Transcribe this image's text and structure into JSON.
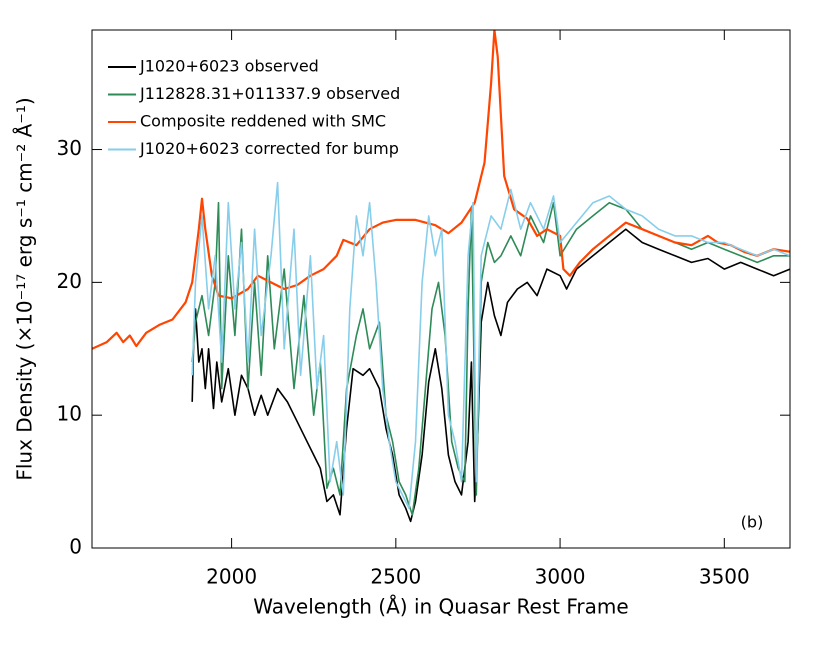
{
  "chart_data": {
    "type": "line",
    "xlabel": "Wavelength (Å) in Quasar Rest Frame",
    "ylabel": "Flux Density (×10⁻¹⁷ erg s⁻¹ cm⁻² Å⁻¹)",
    "annotation": "(b)",
    "xlim": [
      1575,
      3700
    ],
    "xticks": [
      2000,
      2500,
      3000,
      3500
    ],
    "ylim": [
      0,
      39
    ],
    "yticks": [
      0,
      10,
      20,
      30
    ],
    "legend": "upper left",
    "series": [
      {
        "name": "J1020+6023 observed",
        "color": "#000000",
        "x": [
          1880,
          1885,
          1890,
          1900,
          1910,
          1920,
          1930,
          1945,
          1955,
          1970,
          1990,
          2010,
          2030,
          2050,
          2070,
          2090,
          2110,
          2140,
          2170,
          2200,
          2230,
          2250,
          2270,
          2290,
          2310,
          2330,
          2350,
          2370,
          2400,
          2420,
          2450,
          2470,
          2490,
          2510,
          2530,
          2545,
          2560,
          2580,
          2600,
          2620,
          2640,
          2660,
          2680,
          2700,
          2720,
          2730,
          2740,
          2750,
          2760,
          2780,
          2800,
          2820,
          2840,
          2870,
          2900,
          2930,
          2960,
          3000,
          3020,
          3050,
          3100,
          3150,
          3200,
          3250,
          3300,
          3350,
          3400,
          3450,
          3500,
          3550,
          3600,
          3650,
          3700
        ],
        "values": [
          11,
          16,
          18,
          14,
          15,
          12,
          15,
          10.5,
          14,
          11,
          13.5,
          10,
          13,
          12,
          10,
          11.5,
          10,
          12,
          11,
          9.5,
          8,
          7,
          6,
          3.5,
          4,
          2.5,
          9,
          13.5,
          13,
          13.5,
          12,
          9,
          7,
          4,
          3,
          2,
          3.5,
          7,
          12.5,
          15,
          12,
          7,
          5,
          4,
          8,
          14,
          3.5,
          9,
          17,
          20,
          17.5,
          16,
          18.5,
          19.5,
          20,
          19,
          21,
          20.5,
          19.5,
          21,
          22,
          23,
          24,
          23,
          22.5,
          22,
          21.5,
          21.8,
          21,
          21.5,
          21,
          20.5,
          21
        ]
      },
      {
        "name": "J112828.31+011337.9 observed",
        "color": "#2e8b57",
        "x": [
          1880,
          1890,
          1910,
          1930,
          1950,
          1960,
          1970,
          1990,
          2010,
          2030,
          2050,
          2070,
          2090,
          2110,
          2130,
          2160,
          2190,
          2220,
          2250,
          2270,
          2290,
          2310,
          2330,
          2350,
          2380,
          2400,
          2420,
          2450,
          2470,
          2490,
          2510,
          2530,
          2550,
          2570,
          2590,
          2610,
          2630,
          2650,
          2670,
          2690,
          2710,
          2720,
          2730,
          2745,
          2760,
          2780,
          2800,
          2820,
          2850,
          2880,
          2910,
          2950,
          2980,
          3000,
          3050,
          3100,
          3150,
          3200,
          3250,
          3300,
          3350,
          3400,
          3450,
          3500,
          3550,
          3600,
          3650,
          3700
        ],
        "values": [
          14,
          17,
          19,
          16,
          20,
          26,
          12,
          22,
          16,
          24,
          12,
          20,
          13,
          22,
          15,
          21,
          12,
          19,
          10,
          14,
          4.5,
          6,
          4,
          12,
          16,
          18,
          15,
          17,
          10,
          8,
          5,
          4,
          2.5,
          6,
          12,
          18,
          20,
          16,
          8,
          6,
          5,
          18,
          25.5,
          4,
          20,
          23,
          21.5,
          22,
          23.5,
          22,
          25,
          23,
          26,
          22,
          24,
          25,
          26,
          25.5,
          24,
          23.5,
          23,
          22.5,
          23,
          22.5,
          22,
          21.5,
          22,
          22
        ]
      },
      {
        "name": "Composite reddened with SMC",
        "color": "#ff4500",
        "x": [
          1575,
          1620,
          1650,
          1670,
          1690,
          1710,
          1740,
          1780,
          1820,
          1860,
          1880,
          1900,
          1910,
          1920,
          1940,
          1960,
          2000,
          2050,
          2080,
          2120,
          2160,
          2200,
          2240,
          2280,
          2320,
          2340,
          2380,
          2420,
          2460,
          2500,
          2560,
          2620,
          2660,
          2700,
          2740,
          2770,
          2790,
          2800,
          2810,
          2830,
          2860,
          2900,
          2930,
          2960,
          3000,
          3010,
          3030,
          3060,
          3100,
          3150,
          3200,
          3250,
          3300,
          3350,
          3400,
          3450,
          3480,
          3520,
          3560,
          3600,
          3650,
          3700
        ],
        "values": [
          15,
          15.5,
          16.2,
          15.5,
          16,
          15.2,
          16.2,
          16.8,
          17.2,
          18.5,
          20,
          24,
          26.3,
          24,
          20.5,
          19,
          18.8,
          19.5,
          20.5,
          20,
          19.5,
          19.8,
          20.5,
          21,
          22,
          23.2,
          22.8,
          24,
          24.5,
          24.7,
          24.7,
          24.3,
          23.7,
          24.5,
          26,
          29,
          35,
          39,
          37,
          28,
          25.5,
          24.8,
          23.5,
          24,
          23.5,
          21,
          20.5,
          21.5,
          22.5,
          23.5,
          24.5,
          24,
          23.5,
          23,
          22.8,
          23.5,
          23,
          22.8,
          22.3,
          22,
          22.5,
          22.3
        ]
      },
      {
        "name": "J1020+6023 corrected for bump",
        "color": "#87ceeb",
        "x": [
          1880,
          1890,
          1910,
          1930,
          1950,
          1970,
          1990,
          2010,
          2030,
          2050,
          2070,
          2090,
          2120,
          2140,
          2160,
          2190,
          2210,
          2240,
          2260,
          2280,
          2300,
          2320,
          2340,
          2360,
          2380,
          2400,
          2420,
          2440,
          2460,
          2480,
          2500,
          2520,
          2540,
          2560,
          2580,
          2600,
          2620,
          2640,
          2660,
          2680,
          2700,
          2720,
          2735,
          2745,
          2760,
          2790,
          2820,
          2850,
          2880,
          2910,
          2950,
          2980,
          3000,
          3050,
          3100,
          3150,
          3200,
          3250,
          3300,
          3350,
          3400,
          3450,
          3500,
          3550,
          3600,
          3650,
          3700
        ],
        "values": [
          13,
          20,
          25,
          18,
          22,
          14,
          26,
          18,
          23,
          14,
          24,
          16,
          22,
          27.5,
          15,
          24,
          13,
          22,
          12,
          16,
          5,
          8,
          4,
          18,
          25,
          22,
          26,
          20,
          12,
          8,
          5,
          4,
          3,
          8,
          20,
          25,
          22,
          24,
          10,
          8,
          5,
          22,
          26,
          5,
          22,
          25,
          24,
          27,
          24,
          26,
          24,
          26.5,
          23,
          24.5,
          26,
          26.5,
          25.5,
          25,
          24,
          23.5,
          23.5,
          23,
          23,
          22.5,
          22,
          22.5,
          22
        ]
      }
    ]
  }
}
